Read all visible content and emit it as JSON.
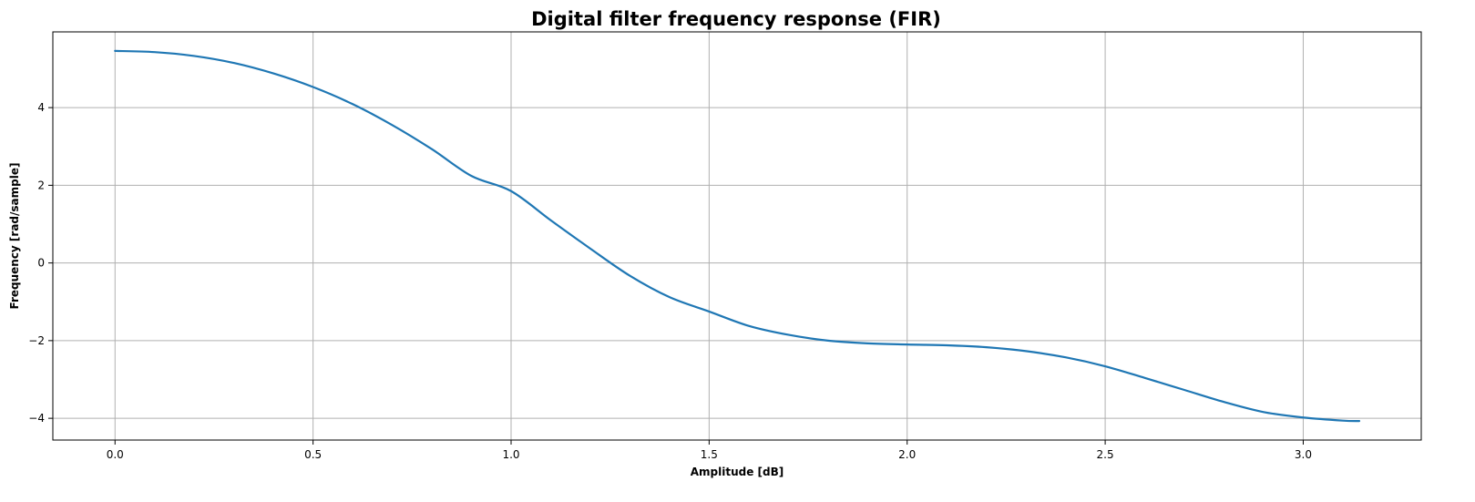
{
  "chart_data": {
    "type": "line",
    "title": "Digital filter frequency response (FIR)",
    "xlabel": "Amplitude [dB]",
    "ylabel": "Frequency [rad/sample]",
    "xlim": [
      -0.157,
      3.298
    ],
    "ylim": [
      -4.56,
      5.95
    ],
    "xticks": [
      0.0,
      0.5,
      1.0,
      1.5,
      2.0,
      2.5,
      3.0
    ],
    "xtick_labels": [
      "0.0",
      "0.5",
      "1.0",
      "1.5",
      "2.0",
      "2.5",
      "3.0"
    ],
    "yticks": [
      -4,
      -2,
      0,
      2,
      4
    ],
    "ytick_labels": [
      "−4",
      "−2",
      "0",
      "2",
      "4"
    ],
    "grid": true,
    "series": [
      {
        "color": "#1f77b4",
        "x": [
          0.0,
          0.1,
          0.2,
          0.3,
          0.4,
          0.5,
          0.6,
          0.7,
          0.8,
          0.9,
          1.0,
          1.1,
          1.2,
          1.3,
          1.4,
          1.5,
          1.6,
          1.7,
          1.8,
          1.9,
          2.0,
          2.1,
          2.2,
          2.3,
          2.4,
          2.5,
          2.6,
          2.7,
          2.8,
          2.9,
          3.0,
          3.1,
          3.1416
        ],
        "y": [
          5.46,
          5.43,
          5.33,
          5.15,
          4.88,
          4.53,
          4.09,
          3.55,
          2.93,
          2.24,
          1.85,
          1.1,
          0.37,
          -0.33,
          -0.88,
          -1.25,
          -1.62,
          -1.85,
          -2.0,
          -2.07,
          -2.1,
          -2.12,
          -2.17,
          -2.27,
          -2.43,
          -2.66,
          -2.96,
          -3.27,
          -3.58,
          -3.84,
          -3.98,
          -4.06,
          -4.07
        ]
      }
    ]
  }
}
